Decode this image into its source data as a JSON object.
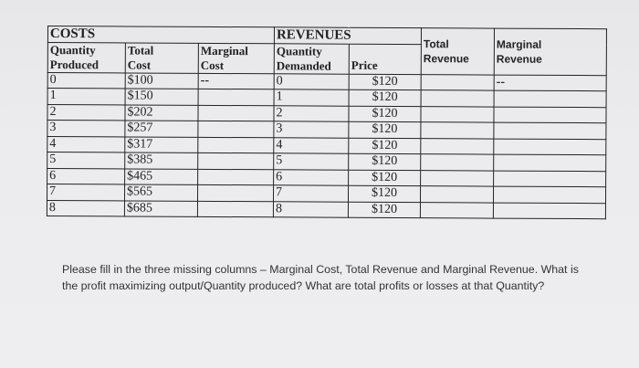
{
  "sections": {
    "costs": "COSTS",
    "revenues": "REVENUES"
  },
  "headers": {
    "quantity_produced_1": "Quantity",
    "quantity_produced_2": "Produced",
    "total_cost_1": "Total",
    "total_cost_2": "Cost",
    "marginal_cost_1": "Marginal",
    "marginal_cost_2": "Cost",
    "quantity_demanded_1": "Quantity",
    "quantity_demanded_2": "Demanded",
    "price": "Price",
    "total_revenue_1": "Total",
    "total_revenue_2": "Revenue",
    "marginal_revenue_1": "Marginal",
    "marginal_revenue_2": "Revenue"
  },
  "first_row": {
    "qp": "0",
    "tc": "$100",
    "mc": "--",
    "qd": "0",
    "price": "$120",
    "tr": "",
    "mr": "--"
  },
  "rows": [
    {
      "qp": "1",
      "tc": "$150",
      "qd": "1",
      "price": "$120"
    },
    {
      "qp": "2",
      "tc": "$202",
      "qd": "2",
      "price": "$120"
    },
    {
      "qp": "3",
      "tc": "$257",
      "qd": "3",
      "price": "$120"
    },
    {
      "qp": "4",
      "tc": "$317",
      "qd": "4",
      "price": "$120"
    },
    {
      "qp": "5",
      "tc": "$385",
      "qd": "5",
      "price": "$120"
    },
    {
      "qp": "6",
      "tc": "$465",
      "qd": "6",
      "price": "$120"
    },
    {
      "qp": "7",
      "tc": "$565",
      "qd": "7",
      "price": "$120"
    },
    {
      "qp": "8",
      "tc": "$685",
      "qd": "8",
      "price": "$120"
    }
  ],
  "question": {
    "line1": "Please fill in the three missing columns – Marginal Cost, Total Revenue and Marginal Revenue.  What is",
    "line2": "the profit maximizing output/Quantity produced? What are total profits or losses at that Quantity?"
  }
}
